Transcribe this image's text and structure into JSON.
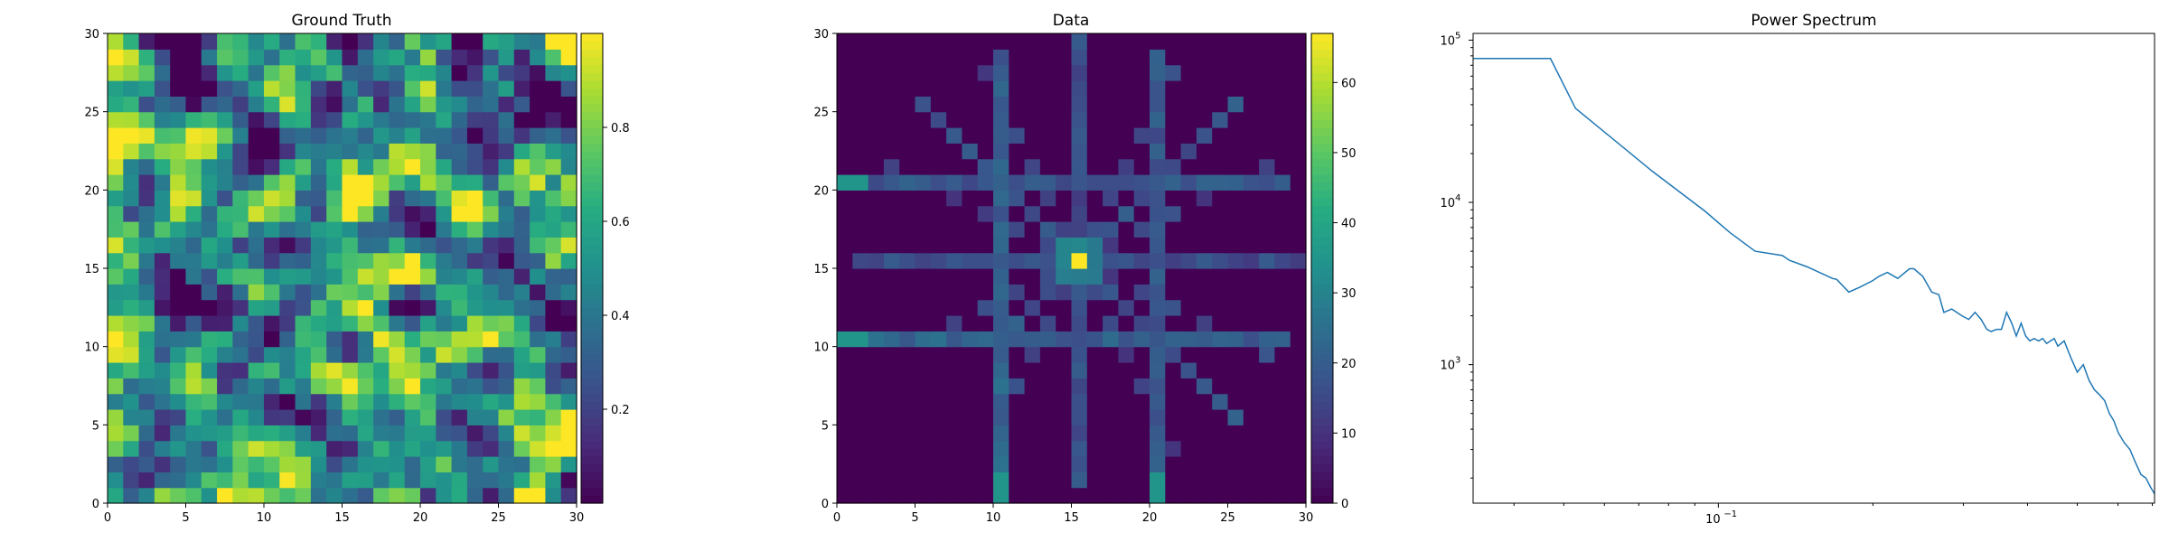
{
  "colors": {
    "line": "#1f77b4",
    "colormap": "viridis"
  },
  "chart_data": [
    {
      "type": "heatmap",
      "title": "Ground Truth",
      "xlim": [
        0,
        30
      ],
      "ylim": [
        0,
        30
      ],
      "xticks": [
        "0",
        "5",
        "10",
        "15",
        "20",
        "25",
        "30"
      ],
      "yticks": [
        "0",
        "5",
        "10",
        "15",
        "20",
        "25",
        "30"
      ],
      "colorbar": {
        "range": [
          0,
          1
        ],
        "ticks": [
          "0.2",
          "0.4",
          "0.6",
          "0.8"
        ],
        "tick_values": [
          0.2,
          0.4,
          0.6,
          0.8
        ]
      },
      "grid_size": 30,
      "note_values": "random field, values 0–1"
    },
    {
      "type": "heatmap",
      "title": "Data",
      "xlim": [
        0,
        30
      ],
      "ylim": [
        0,
        30
      ],
      "xticks": [
        "0",
        "5",
        "10",
        "15",
        "20",
        "25",
        "30"
      ],
      "yticks": [
        "0",
        "5",
        "10",
        "15",
        "20",
        "25",
        "30"
      ],
      "colorbar": {
        "range": [
          0,
          67
        ],
        "ticks": [
          "0",
          "10",
          "20",
          "30",
          "40",
          "50",
          "60"
        ],
        "tick_values": [
          0,
          10,
          20,
          30,
          40,
          50,
          60
        ]
      },
      "grid_size": 30,
      "center": [
        15,
        15
      ],
      "peak": 67
    },
    {
      "type": "line",
      "title": "Power Spectrum",
      "xscale": "log",
      "yscale": "log",
      "xlim": [
        0.0333,
        0.707
      ],
      "ylim": [
        140,
        110000
      ],
      "xticks": [
        {
          "value": 0.1,
          "label": "10",
          "exp": "−1"
        }
      ],
      "yticks": [
        {
          "value": 1000,
          "label": "10",
          "exp": "3"
        },
        {
          "value": 10000,
          "label": "10",
          "exp": "4"
        },
        {
          "value": 100000,
          "label": "10",
          "exp": "5"
        }
      ],
      "series": [
        {
          "x": [
            0.0333,
            0.0471,
            0.0527,
            0.0745,
            0.0943,
            0.1054,
            0.1179,
            0.1333,
            0.1374,
            0.1491,
            0.1667,
            0.17,
            0.1795,
            0.1886,
            0.2,
            0.2055,
            0.2134,
            0.2236,
            0.2357,
            0.2404,
            0.25,
            0.2603,
            0.2687,
            0.2749,
            0.2848,
            0.2981,
            0.3073,
            0.3162,
            0.3249,
            0.3333,
            0.3399,
            0.348,
            0.3559,
            0.3642,
            0.3727,
            0.3804,
            0.3887,
            0.3967,
            0.4044,
            0.412,
            0.4203,
            0.4281,
            0.4358,
            0.4434,
            0.4509,
            0.4583,
            0.4714,
            0.486,
            0.5,
            0.5138,
            0.527,
            0.54,
            0.5528,
            0.5652,
            0.5774,
            0.5892,
            0.6009,
            0.6172,
            0.6331,
            0.6489,
            0.6654,
            0.6799,
            0.6952,
            0.7071
          ],
          "y": [
            77000,
            77000,
            38000,
            15500,
            8800,
            6500,
            5000,
            4700,
            4400,
            4000,
            3400,
            3350,
            2800,
            3000,
            3300,
            3500,
            3700,
            3400,
            3900,
            3900,
            3500,
            2800,
            2700,
            2100,
            2200,
            2000,
            1900,
            2100,
            1900,
            1650,
            1600,
            1650,
            1650,
            2100,
            1800,
            1500,
            1800,
            1500,
            1400,
            1450,
            1400,
            1450,
            1350,
            1400,
            1450,
            1300,
            1400,
            1100,
            900,
            1000,
            800,
            700,
            650,
            600,
            500,
            450,
            380,
            330,
            300,
            250,
            210,
            200,
            175,
            160
          ]
        }
      ]
    }
  ]
}
